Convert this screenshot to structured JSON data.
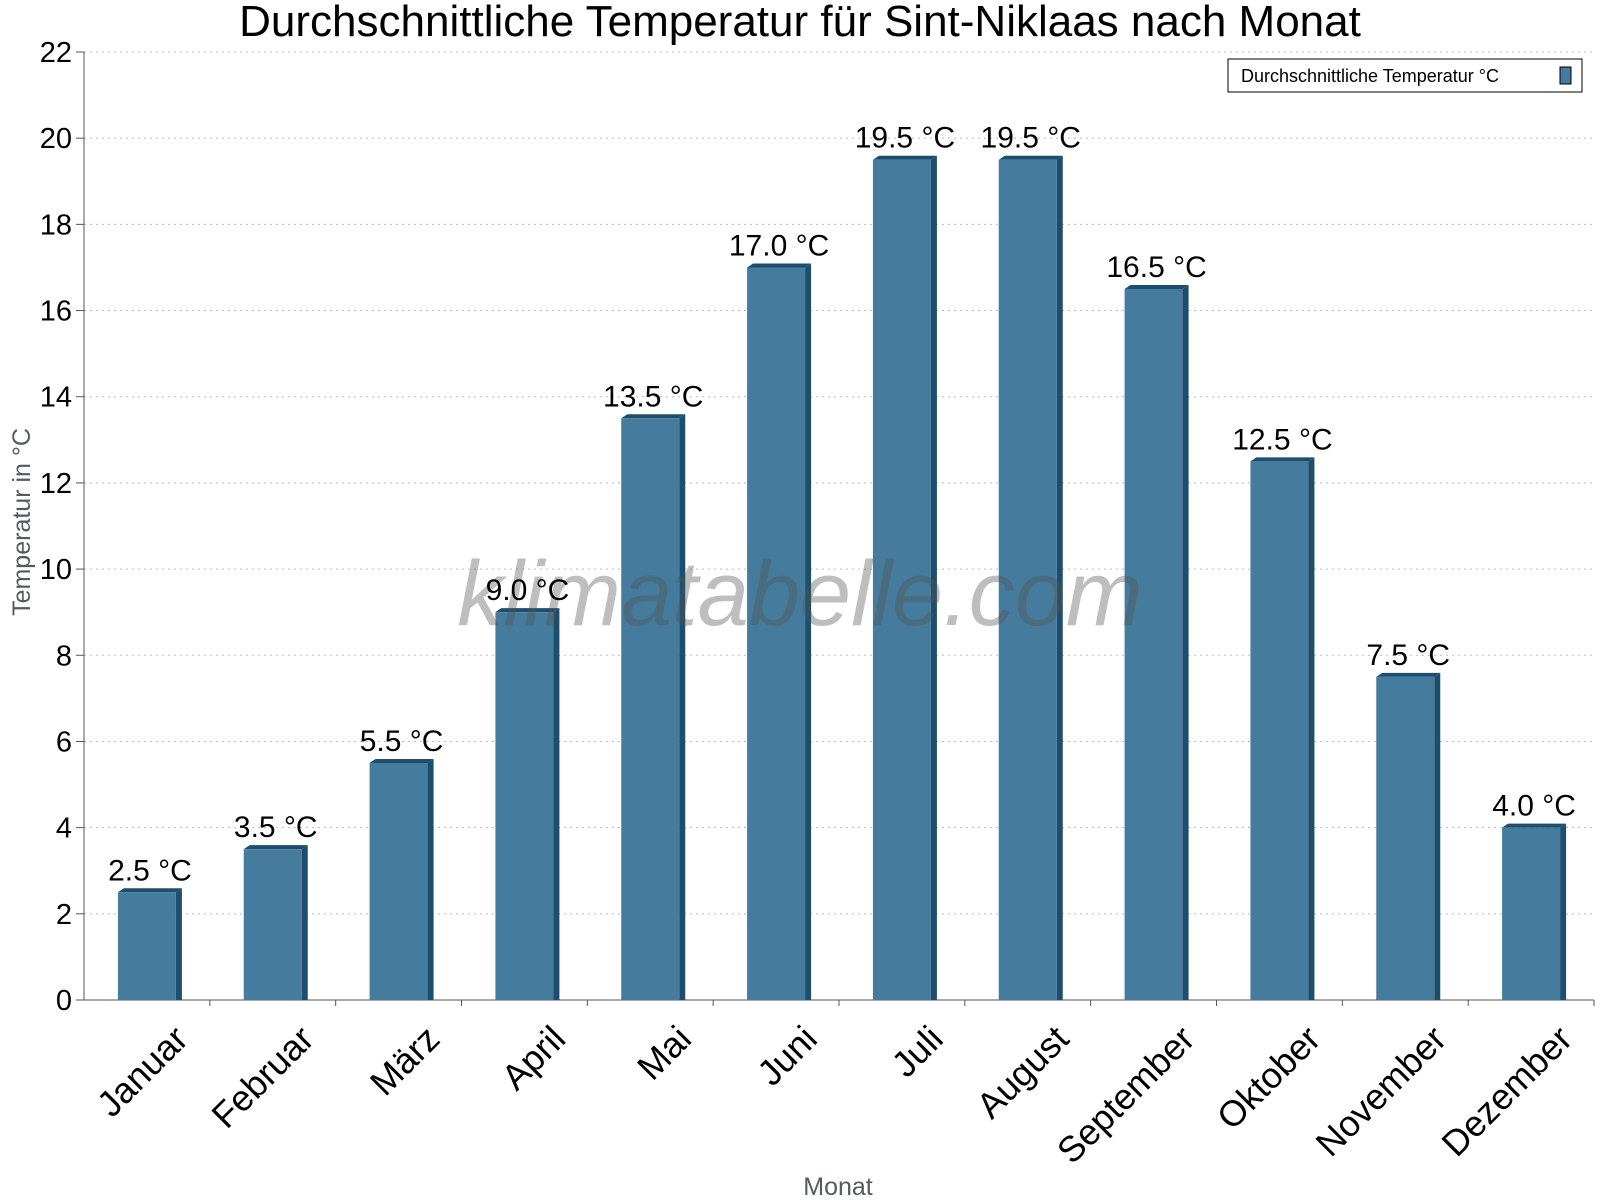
{
  "chart_data": {
    "type": "bar",
    "title": "Durchschnittliche Temperatur für Sint-Niklaas nach Monat",
    "xlabel": "Monat",
    "ylabel": "Temperatur in °C",
    "categories": [
      "Januar",
      "Februar",
      "März",
      "April",
      "Mai",
      "Juni",
      "Juli",
      "August",
      "September",
      "Oktober",
      "November",
      "Dezember"
    ],
    "series": [
      {
        "name": "Durchschnittliche Temperatur °C",
        "values": [
          2.5,
          3.5,
          5.5,
          9.0,
          13.5,
          17.0,
          19.5,
          19.5,
          16.5,
          12.5,
          7.5,
          4.0
        ],
        "value_labels": [
          "2.5 °C",
          "3.5 °C",
          "5.5 °C",
          "9.0 °C",
          "13.5 °C",
          "17.0 °C",
          "19.5 °C",
          "19.5 °C",
          "16.5 °C",
          "12.5 °C",
          "7.5 °C",
          "4.0 °C"
        ],
        "color": "#457b9d",
        "shadow_color": "#1d4e6e"
      }
    ],
    "ylim": [
      0,
      22
    ],
    "yticks": [
      0,
      2,
      4,
      6,
      8,
      10,
      12,
      14,
      16,
      18,
      20,
      22
    ],
    "grid": "horizontal-dotted",
    "legend_position": "top-right",
    "watermark": "klimatabelle.com"
  }
}
